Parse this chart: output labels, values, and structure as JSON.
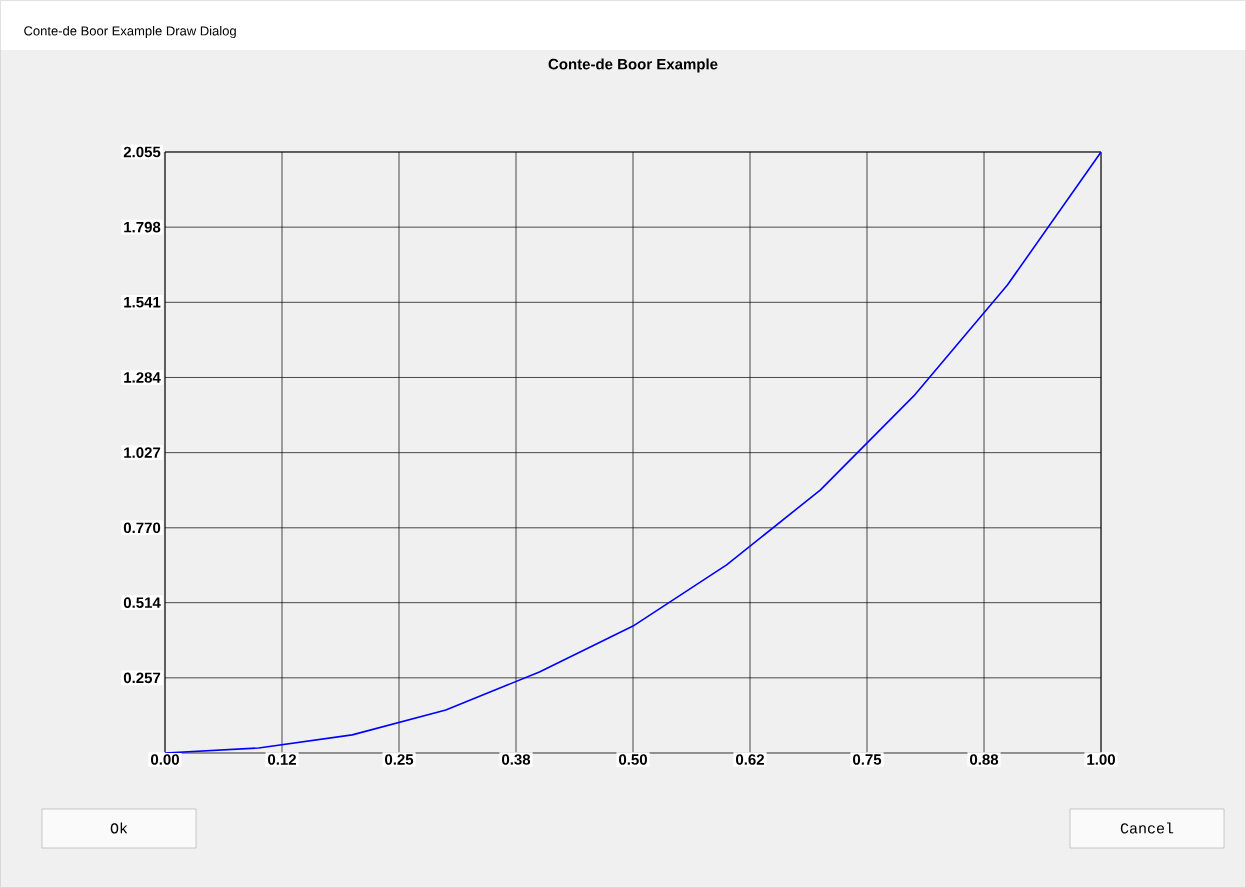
{
  "chart_data": {
    "type": "line",
    "title": "Conte-de Boor Example",
    "x": [
      0,
      0.1,
      0.2,
      0.3,
      0.4,
      0.5,
      0.6,
      0.7,
      0.8,
      0.9,
      1.0
    ],
    "series": [
      {
        "color": "#0000ff",
        "values": [
          0,
          0.017,
          0.062,
          0.147,
          0.277,
          0.434,
          0.643,
          0.899,
          1.221,
          1.6,
          2.055
        ]
      }
    ],
    "xlim": [
      0,
      1
    ],
    "ylim": [
      0,
      2.055
    ],
    "xticks": [
      {
        "value": 0,
        "label": "0.00"
      },
      {
        "value": 0.125,
        "label": "0.12"
      },
      {
        "value": 0.25,
        "label": "0.25"
      },
      {
        "value": 0.375,
        "label": "0.38"
      },
      {
        "value": 0.5,
        "label": "0.50"
      },
      {
        "value": 0.625,
        "label": "0.62"
      },
      {
        "value": 0.75,
        "label": "0.75"
      },
      {
        "value": 0.875,
        "label": "0.88"
      },
      {
        "value": 1,
        "label": "1.00"
      }
    ],
    "yticks": [
      {
        "value": 0.257,
        "label": "0.257"
      },
      {
        "value": 0.514,
        "label": "0.514"
      },
      {
        "value": 0.77,
        "label": "0.770"
      },
      {
        "value": 1.027,
        "label": "1.027"
      },
      {
        "value": 1.284,
        "label": "1.284"
      },
      {
        "value": 1.541,
        "label": "1.541"
      },
      {
        "value": 1.798,
        "label": "1.798"
      },
      {
        "value": 2.055,
        "label": "2.055"
      }
    ],
    "grid": true,
    "annotations": [
      "Conte-de Boor Example Draw Dialog",
      "Ok",
      "Cancel"
    ]
  }
}
